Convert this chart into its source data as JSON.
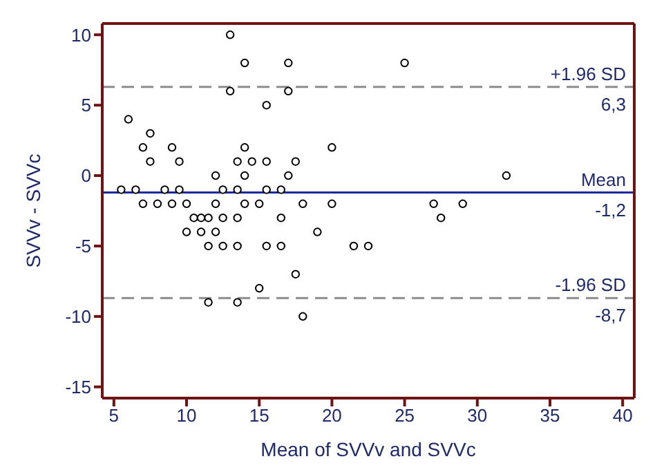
{
  "chart_data": {
    "type": "scatter",
    "xlabel": "Mean of SVVv and SVVc",
    "ylabel": "SVVv - SVVc",
    "x": [
      6,
      5.5,
      6.5,
      7,
      7.5,
      7.5,
      7,
      8,
      8.5,
      9,
      9,
      9.5,
      9.5,
      10,
      10.5,
      10,
      11,
      11,
      11.5,
      12,
      11.5,
      12.5,
      13.5,
      12,
      12,
      12.5,
      12.5,
      13.5,
      13.5,
      13,
      13,
      14,
      14,
      13.5,
      14.5,
      14,
      14,
      11.5,
      13.5,
      15,
      17,
      17,
      15.5,
      20,
      15.5,
      17.5,
      17,
      15.5,
      16.5,
      15,
      18,
      20,
      16.5,
      19,
      15.5,
      16.5,
      21.5,
      22.5,
      17.5,
      18,
      25,
      32,
      27,
      29,
      27.5
    ],
    "values": [
      4,
      -1,
      -1,
      2,
      3,
      1,
      -2,
      -2,
      -1,
      2,
      -2,
      1,
      -1,
      -2,
      -3,
      -4,
      -4,
      -3,
      -3,
      -4,
      -5,
      -5,
      -5,
      -2,
      0,
      -1,
      -3,
      -1,
      -3,
      10,
      6,
      8,
      2,
      1,
      1,
      0,
      -2,
      -9,
      -9,
      -8,
      8,
      6,
      5,
      2,
      1,
      1,
      0,
      -1,
      -1,
      -2,
      -2,
      -2,
      -3,
      -4,
      -5,
      -5,
      -5,
      -5,
      -7,
      -10,
      8,
      0,
      -2,
      -2,
      -3
    ],
    "color": "#000000",
    "marker": "circle",
    "xlim": [
      4.2,
      40.8
    ],
    "xticks": [
      5,
      10,
      15,
      20,
      25,
      30,
      35,
      40
    ],
    "ylim": [
      -15.8,
      10.8
    ],
    "yticks": [
      -15,
      -10,
      -5,
      0,
      5,
      10
    ],
    "ref_lines": [
      {
        "axis": "y",
        "value": 6.3,
        "label": "+1.96 SD",
        "color": "#8c8c8c",
        "line_style": "dashed"
      },
      {
        "axis": "y",
        "value": -1.2,
        "label": "Mean",
        "color": "#1a2a9a",
        "line_style": "solid"
      },
      {
        "axis": "y",
        "value": -8.7,
        "label": "-1.96 SD",
        "color": "#8c8c8c",
        "line_style": "dashed"
      }
    ],
    "annotations": [
      {
        "text": "6,3",
        "y": 6.3
      },
      {
        "text": "-1,2",
        "y": -1.2
      },
      {
        "text": "-8,7",
        "y": -8.7
      }
    ]
  }
}
